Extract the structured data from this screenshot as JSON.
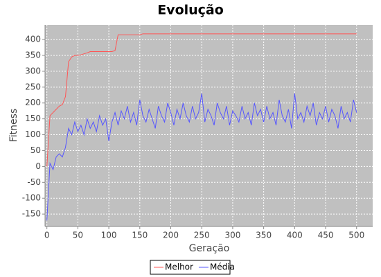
{
  "chart_data": {
    "type": "line",
    "title": "Evolução",
    "x_label": "Geração",
    "y_label": "Fitness",
    "x": [
      0,
      5,
      10,
      15,
      20,
      25,
      30,
      35,
      40,
      45,
      50,
      55,
      60,
      65,
      70,
      75,
      80,
      85,
      90,
      95,
      100,
      105,
      110,
      115,
      120,
      125,
      130,
      135,
      140,
      145,
      150,
      155,
      160,
      165,
      170,
      175,
      180,
      185,
      190,
      195,
      200,
      205,
      210,
      215,
      220,
      225,
      230,
      235,
      240,
      245,
      250,
      255,
      260,
      265,
      270,
      275,
      280,
      285,
      290,
      295,
      300,
      305,
      310,
      315,
      320,
      325,
      330,
      335,
      340,
      345,
      350,
      355,
      360,
      365,
      370,
      375,
      380,
      385,
      390,
      395,
      400,
      405,
      410,
      415,
      420,
      425,
      430,
      435,
      440,
      445,
      450,
      455,
      460,
      465,
      470,
      475,
      480,
      485,
      490,
      495,
      500
    ],
    "series": [
      {
        "name": "Melhor",
        "color": "#ff5555",
        "values": [
          0,
          160,
          170,
          180,
          190,
          195,
          220,
          330,
          345,
          350,
          350,
          352,
          355,
          358,
          362,
          362,
          362,
          362,
          362,
          362,
          362,
          362,
          365,
          415,
          415,
          415,
          415,
          415,
          415,
          415,
          415,
          418,
          418,
          418,
          418,
          418,
          418,
          418,
          418,
          418,
          418,
          418,
          418,
          418,
          418,
          418,
          418,
          418,
          418,
          418,
          418,
          418,
          418,
          418,
          418,
          418,
          418,
          418,
          418,
          418,
          418,
          418,
          418,
          418,
          418,
          418,
          418,
          418,
          418,
          418,
          418,
          418,
          418,
          418,
          418,
          418,
          418,
          418,
          418,
          418,
          418,
          418,
          418,
          418,
          418,
          418,
          418,
          418,
          418,
          418,
          418,
          418,
          418,
          418,
          418,
          418,
          418,
          418,
          418,
          418,
          418
        ]
      },
      {
        "name": "Média",
        "color": "#5555ff",
        "values": [
          -170,
          10,
          -10,
          30,
          40,
          30,
          60,
          120,
          100,
          140,
          110,
          130,
          100,
          150,
          120,
          140,
          110,
          160,
          130,
          150,
          80,
          140,
          170,
          130,
          175,
          150,
          190,
          140,
          170,
          130,
          210,
          160,
          140,
          180,
          150,
          120,
          190,
          160,
          140,
          200,
          170,
          130,
          180,
          150,
          200,
          160,
          140,
          190,
          150,
          170,
          230,
          140,
          180,
          160,
          130,
          200,
          170,
          150,
          190,
          130,
          175,
          160,
          140,
          190,
          150,
          170,
          130,
          200,
          160,
          180,
          140,
          190,
          150,
          170,
          130,
          210,
          160,
          140,
          180,
          120,
          230,
          150,
          170,
          140,
          190,
          160,
          200,
          130,
          170,
          150,
          190,
          140,
          180,
          160,
          120,
          190,
          150,
          170,
          140,
          210,
          170
        ]
      }
    ],
    "xlim": [
      -3,
      526
    ],
    "ylim": [
      -189,
      446
    ],
    "xticks": [
      0,
      50,
      100,
      150,
      200,
      250,
      300,
      350,
      400,
      450,
      500
    ],
    "yticks": [
      -150,
      -100,
      -50,
      0,
      50,
      100,
      150,
      200,
      250,
      300,
      350,
      400
    ],
    "grid": true,
    "legend": "bottom"
  }
}
